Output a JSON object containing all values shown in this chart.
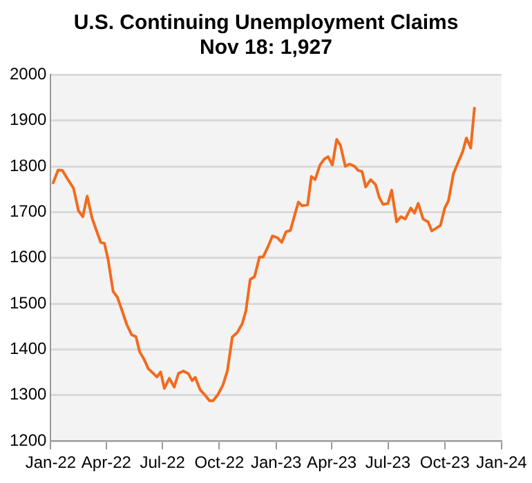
{
  "chart_data": {
    "type": "line",
    "title": "U.S. Continuing Unemployment Claims",
    "subtitle": "Nov 18: 1,927",
    "x": [
      "2022-01-05",
      "2022-01-13",
      "2022-01-20",
      "2022-01-28",
      "2022-02-07",
      "2022-02-15",
      "2022-02-22",
      "2022-03-01",
      "2022-03-09",
      "2022-03-16",
      "2022-03-23",
      "2022-03-29",
      "2022-04-04",
      "2022-04-12",
      "2022-04-19",
      "2022-04-26",
      "2022-05-04",
      "2022-05-12",
      "2022-05-19",
      "2022-05-25",
      "2022-06-01",
      "2022-06-08",
      "2022-06-16",
      "2022-06-22",
      "2022-06-28",
      "2022-07-04",
      "2022-07-12",
      "2022-07-20",
      "2022-07-27",
      "2022-08-04",
      "2022-08-12",
      "2022-08-18",
      "2022-08-23",
      "2022-08-31",
      "2022-09-08",
      "2022-09-15",
      "2022-09-21",
      "2022-09-29",
      "2022-10-07",
      "2022-10-14",
      "2022-10-22",
      "2022-10-30",
      "2022-11-07",
      "2022-11-13",
      "2022-11-20",
      "2022-11-27",
      "2022-12-05",
      "2022-12-11",
      "2022-12-19",
      "2022-12-26",
      "2023-01-03",
      "2023-01-10",
      "2023-01-17",
      "2023-01-24",
      "2023-02-06",
      "2023-02-12",
      "2023-02-21",
      "2023-02-27",
      "2023-03-05",
      "2023-03-13",
      "2023-03-20",
      "2023-03-26",
      "2023-04-02",
      "2023-04-09",
      "2023-04-15",
      "2023-04-23",
      "2023-04-30",
      "2023-05-08",
      "2023-05-14",
      "2023-05-20",
      "2023-05-26",
      "2023-06-03",
      "2023-06-11",
      "2023-06-17",
      "2023-06-23",
      "2023-07-01",
      "2023-07-07",
      "2023-07-15",
      "2023-07-22",
      "2023-07-29",
      "2023-08-07",
      "2023-08-13",
      "2023-08-19",
      "2023-08-27",
      "2023-09-04",
      "2023-09-10",
      "2023-09-16",
      "2023-09-24",
      "2023-10-01",
      "2023-10-07",
      "2023-10-15",
      "2023-10-23",
      "2023-10-30",
      "2023-11-05",
      "2023-11-12",
      "2023-11-18"
    ],
    "series": [
      {
        "color": "#f26b1d",
        "values": [
          1764,
          1792,
          1791,
          1773,
          1752,
          1703,
          1690,
          1735,
          1687,
          1660,
          1634,
          1632,
          1596,
          1527,
          1514,
          1487,
          1455,
          1432,
          1428,
          1395,
          1379,
          1358,
          1348,
          1340,
          1351,
          1315,
          1337,
          1318,
          1348,
          1353,
          1347,
          1332,
          1339,
          1312,
          1300,
          1288,
          1288,
          1302,
          1323,
          1353,
          1427,
          1437,
          1456,
          1484,
          1553,
          1559,
          1602,
          1602,
          1625,
          1648,
          1644,
          1634,
          1657,
          1660,
          1722,
          1714,
          1716,
          1778,
          1771,
          1803,
          1816,
          1821,
          1803,
          1859,
          1846,
          1800,
          1805,
          1800,
          1791,
          1789,
          1755,
          1771,
          1760,
          1732,
          1717,
          1719,
          1748,
          1679,
          1690,
          1685,
          1709,
          1698,
          1719,
          1685,
          1679,
          1659,
          1664,
          1671,
          1709,
          1725,
          1784,
          1810,
          1832,
          1862,
          1840,
          1927
        ]
      }
    ],
    "xlim": [
      "2022-01-01",
      "2024-01-01"
    ],
    "xticks": [
      {
        "value": "2022-01-01",
        "label": "Jan-22"
      },
      {
        "value": "2022-04-01",
        "label": "Apr-22"
      },
      {
        "value": "2022-07-01",
        "label": "Jul-22"
      },
      {
        "value": "2022-10-01",
        "label": "Oct-22"
      },
      {
        "value": "2023-01-01",
        "label": "Jan-23"
      },
      {
        "value": "2023-04-01",
        "label": "Apr-23"
      },
      {
        "value": "2023-07-01",
        "label": "Jul-23"
      },
      {
        "value": "2023-10-01",
        "label": "Oct-23"
      },
      {
        "value": "2024-01-01",
        "label": "Jan-24"
      }
    ],
    "ylim": [
      1200,
      2000
    ],
    "yticks": [
      1200,
      1300,
      1400,
      1500,
      1600,
      1700,
      1800,
      1900,
      2000
    ],
    "grid": "y",
    "legend": false,
    "marker": "none",
    "line_style": "solid"
  }
}
